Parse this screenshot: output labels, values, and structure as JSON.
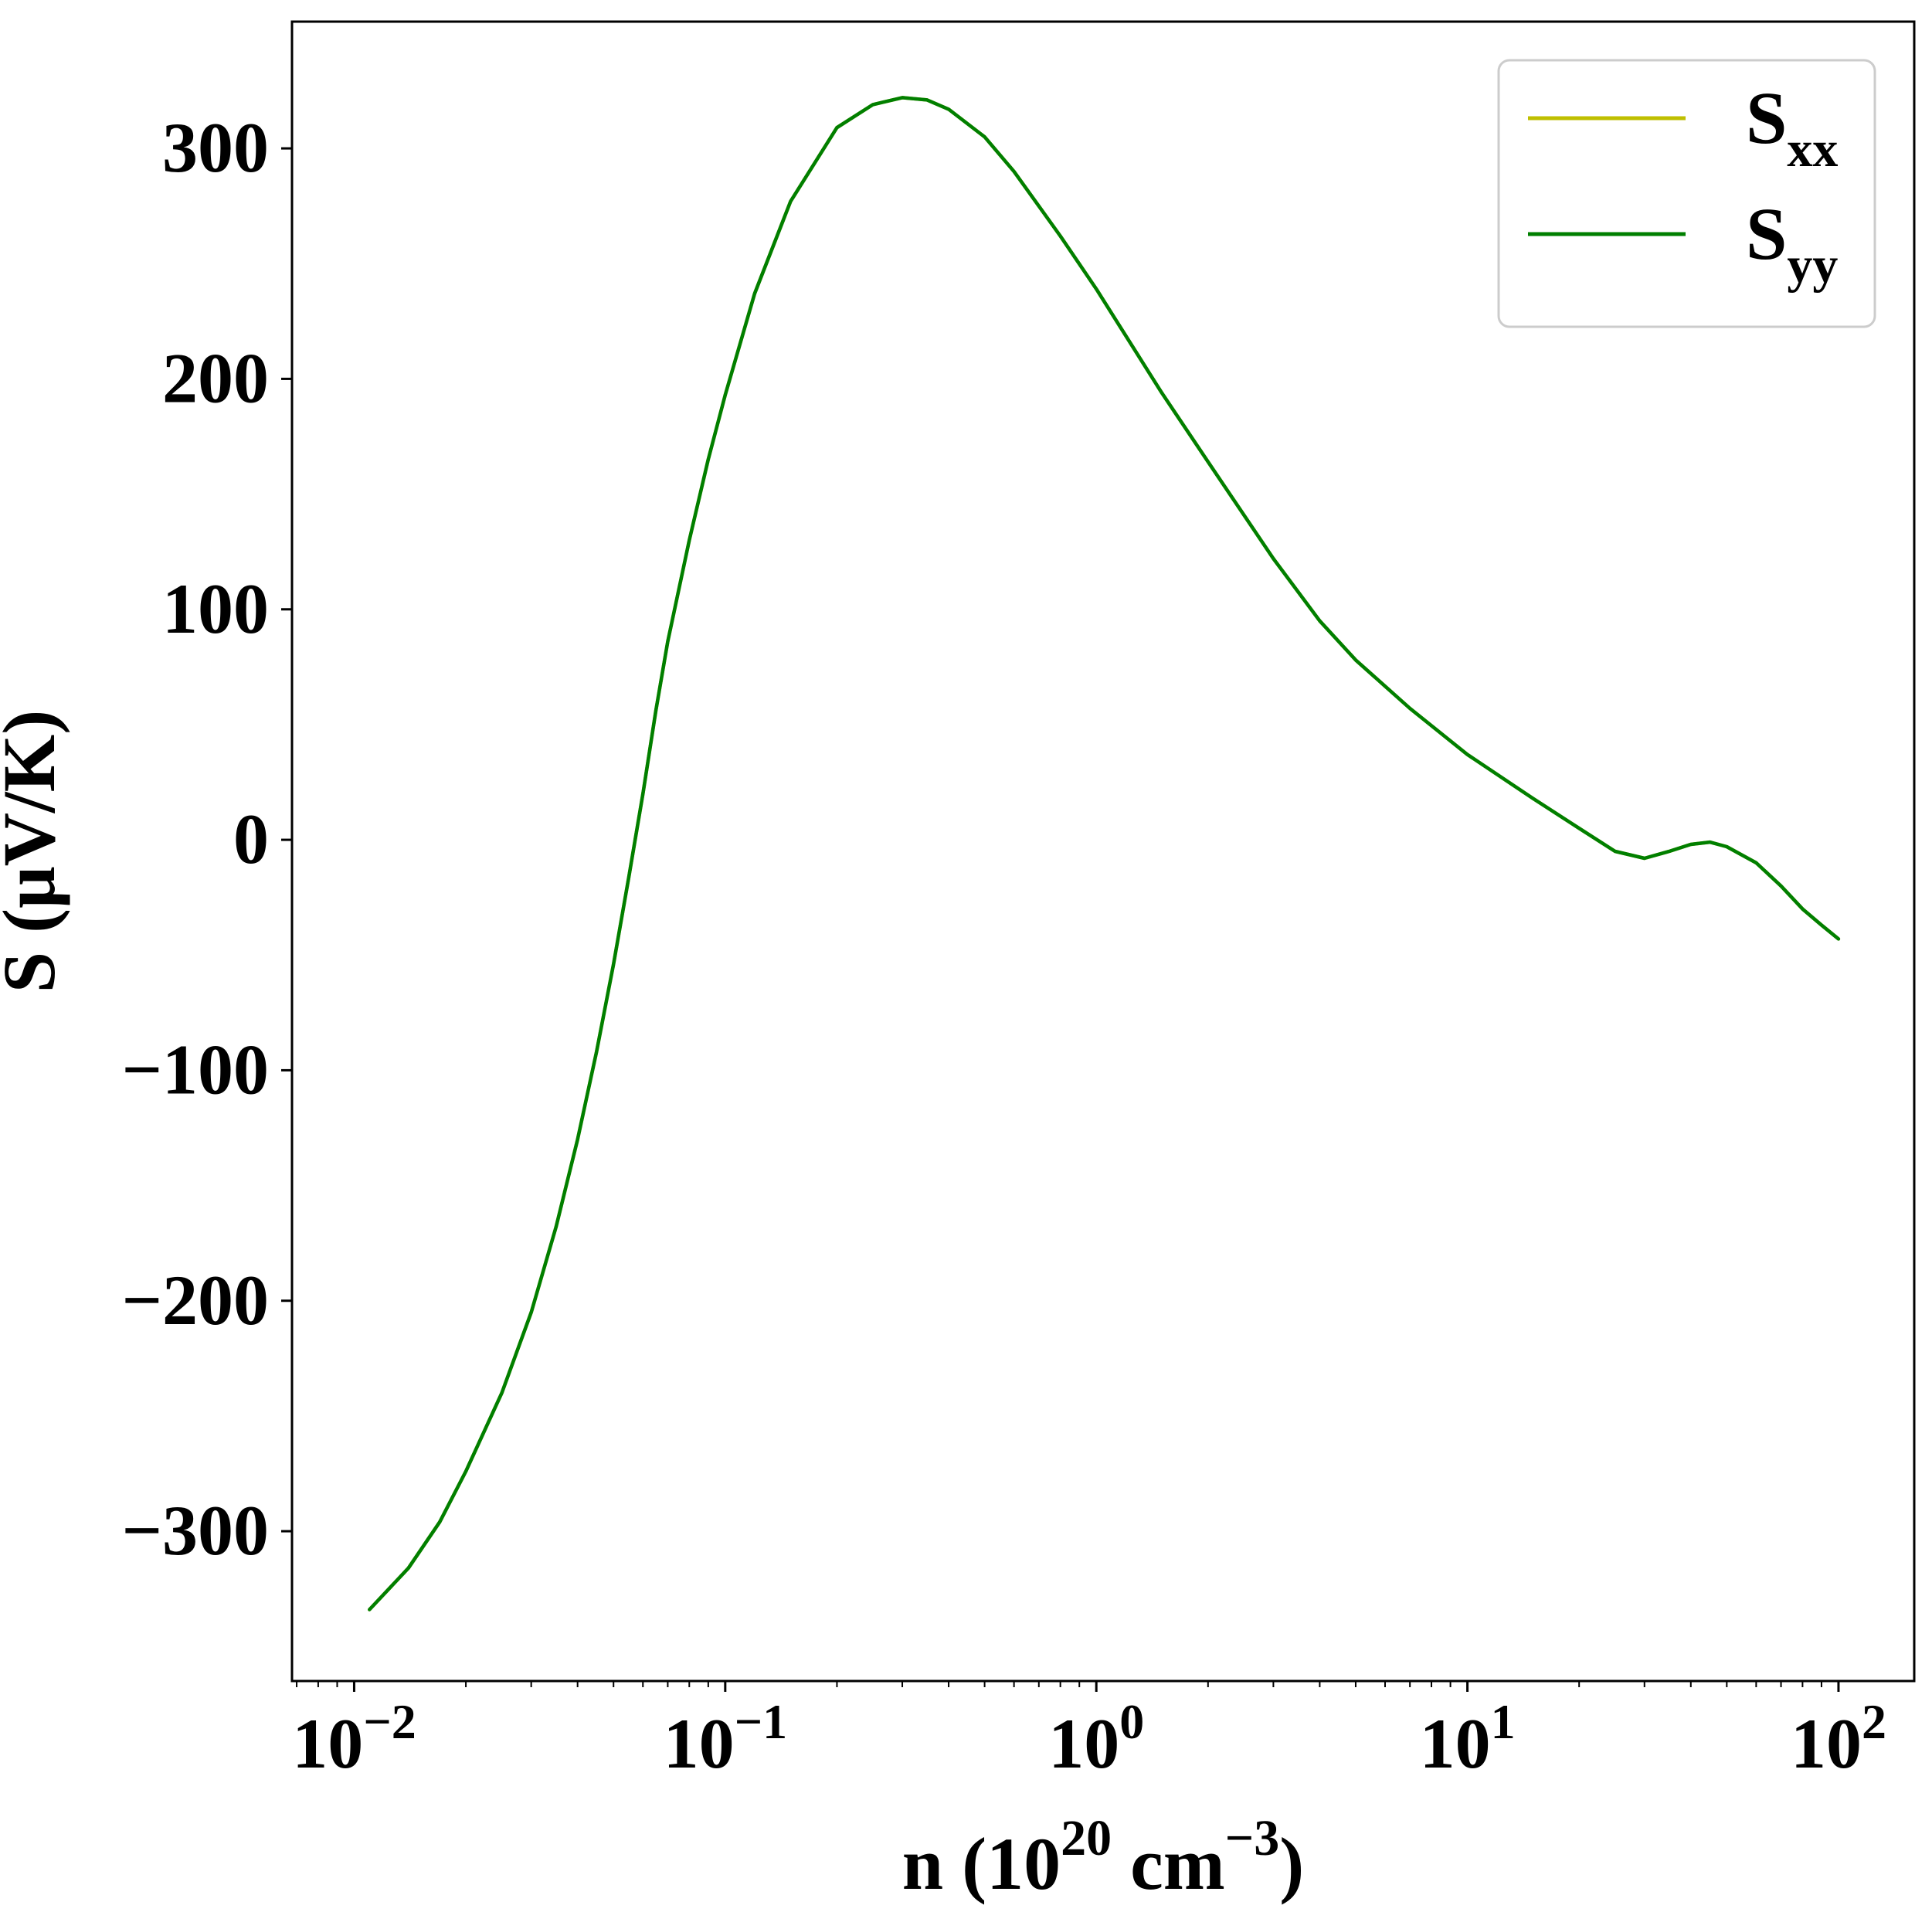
{
  "chart_data": {
    "type": "line",
    "title": "",
    "xlabel": {
      "base": "n (10",
      "exp1": "20",
      "mid": " cm",
      "exp2": "−3",
      "end": ")"
    },
    "ylabel": "S (μV/K)",
    "xscale": "log",
    "xlim": [
      0.0068,
      160
    ],
    "ylim": [
      -365,
      355
    ],
    "x_ticks": [
      {
        "base": "10",
        "exp": "−2",
        "value": 0.01
      },
      {
        "base": "10",
        "exp": "−1",
        "value": 0.1
      },
      {
        "base": "10",
        "exp": "0",
        "value": 1
      },
      {
        "base": "10",
        "exp": "1",
        "value": 10
      },
      {
        "base": "10",
        "exp": "2",
        "value": 100
      }
    ],
    "y_ticks": [
      {
        "label": "−300",
        "value": -300
      },
      {
        "label": "−200",
        "value": -200
      },
      {
        "label": "−100",
        "value": -100
      },
      {
        "label": "0",
        "value": 0
      },
      {
        "label": "100",
        "value": 100
      },
      {
        "label": "200",
        "value": 200
      },
      {
        "label": "300",
        "value": 300
      }
    ],
    "grid": false,
    "legend": {
      "position": "top-right",
      "entries": [
        {
          "main": "S",
          "sub": "xx",
          "color": "#bfbf00"
        },
        {
          "main": "S",
          "sub": "yy",
          "color": "#007f00"
        }
      ]
    },
    "series": [
      {
        "name": "Sxx",
        "color": "#bfbf00",
        "x": [
          0.011,
          0.014,
          0.017,
          0.02,
          0.025,
          0.03,
          0.035,
          0.04,
          0.045,
          0.05,
          0.055,
          0.06,
          0.065,
          0.07,
          0.08,
          0.09,
          0.1,
          0.12,
          0.15,
          0.2,
          0.25,
          0.3,
          0.35,
          0.4,
          0.5,
          0.6,
          0.8,
          1.0,
          1.5,
          2.0,
          3.0,
          4.0,
          5.0,
          7.0,
          10.0,
          15.0,
          20.0,
          25.0,
          30.0,
          35.0,
          40.0,
          45.0,
          50.0,
          60.0,
          70.0,
          80.0,
          90.0,
          100.0
        ],
        "y": [
          -334,
          -316,
          -296,
          -274,
          -240,
          -205,
          -168,
          -130,
          -92,
          -54,
          -16,
          20,
          56,
          86,
          130,
          165,
          193,
          237,
          277,
          309,
          319,
          322,
          321,
          317,
          305,
          290,
          262,
          239,
          194,
          164,
          122,
          95,
          78,
          57,
          37,
          18,
          5,
          -5,
          -8,
          -5,
          -2,
          -1,
          -3,
          -10,
          -20,
          -30,
          -37,
          -43
        ]
      },
      {
        "name": "Syy",
        "color": "#007f00",
        "x": [
          0.011,
          0.014,
          0.017,
          0.02,
          0.025,
          0.03,
          0.035,
          0.04,
          0.045,
          0.05,
          0.055,
          0.06,
          0.065,
          0.07,
          0.08,
          0.09,
          0.1,
          0.12,
          0.15,
          0.2,
          0.25,
          0.3,
          0.35,
          0.4,
          0.5,
          0.6,
          0.8,
          1.0,
          1.5,
          2.0,
          3.0,
          4.0,
          5.0,
          7.0,
          10.0,
          15.0,
          20.0,
          25.0,
          30.0,
          35.0,
          40.0,
          45.0,
          50.0,
          60.0,
          70.0,
          80.0,
          90.0,
          100.0
        ],
        "y": [
          -334,
          -316,
          -296,
          -274,
          -240,
          -205,
          -168,
          -130,
          -92,
          -54,
          -16,
          20,
          56,
          86,
          130,
          165,
          193,
          237,
          277,
          309,
          319,
          322,
          321,
          317,
          305,
          290,
          262,
          239,
          194,
          164,
          122,
          95,
          78,
          57,
          37,
          18,
          5,
          -5,
          -8,
          -5,
          -2,
          -1,
          -3,
          -10,
          -20,
          -30,
          -37,
          -43
        ]
      }
    ]
  }
}
